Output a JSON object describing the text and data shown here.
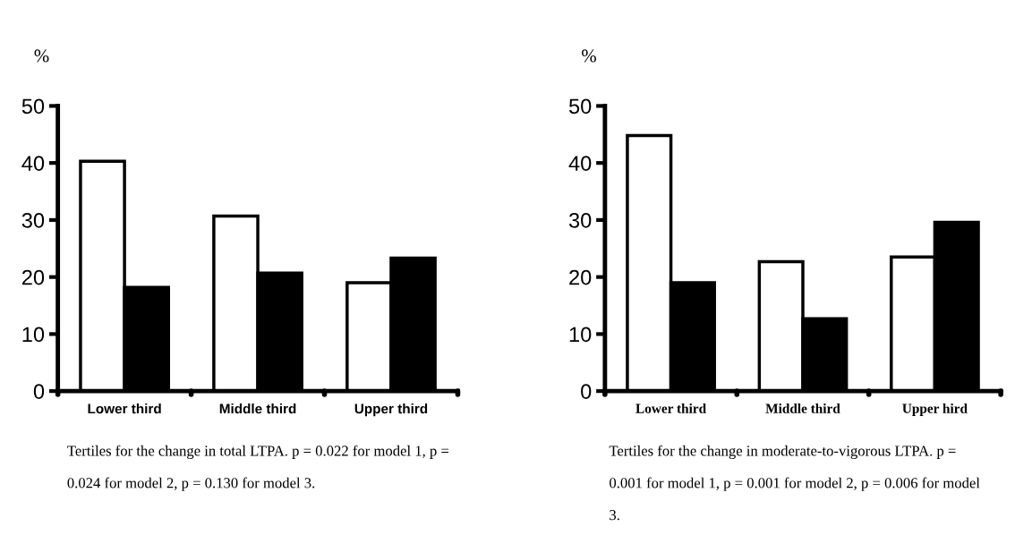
{
  "chart_data": [
    {
      "type": "bar",
      "ylabel": "%",
      "categories": [
        "Lower third",
        "Middle third",
        "Upper third"
      ],
      "series": [
        {
          "color": "#ffffff",
          "values": [
            40.3,
            30.7,
            19.0
          ]
        },
        {
          "color": "#000000",
          "values": [
            18.2,
            20.7,
            23.3
          ]
        }
      ],
      "ylim": [
        0,
        50
      ],
      "yticks": [
        0,
        10,
        20,
        30,
        40,
        50
      ],
      "grid": false,
      "legend": false,
      "annotations": [
        "Tertiles for the change in total LTPA. p = 0.022 for model 1, p = 0.024 for model 2, p = 0.130 for model 3."
      ]
    },
    {
      "type": "bar",
      "ylabel": "%",
      "categories": [
        "Lower third",
        "Middle third",
        "Upper hird"
      ],
      "series": [
        {
          "color": "#ffffff",
          "values": [
            44.8,
            22.7,
            23.5
          ]
        },
        {
          "color": "#000000",
          "values": [
            19.0,
            12.7,
            29.6
          ]
        }
      ],
      "ylim": [
        0,
        50
      ],
      "yticks": [
        0,
        10,
        20,
        30,
        40,
        50
      ],
      "grid": false,
      "legend": false,
      "annotations": [
        "Tertiles for the change in moderate-to-vigorous LTPA. p = 0.001 for model 1, p = 0.001 for model 2, p = 0.006 for model 3."
      ]
    }
  ]
}
